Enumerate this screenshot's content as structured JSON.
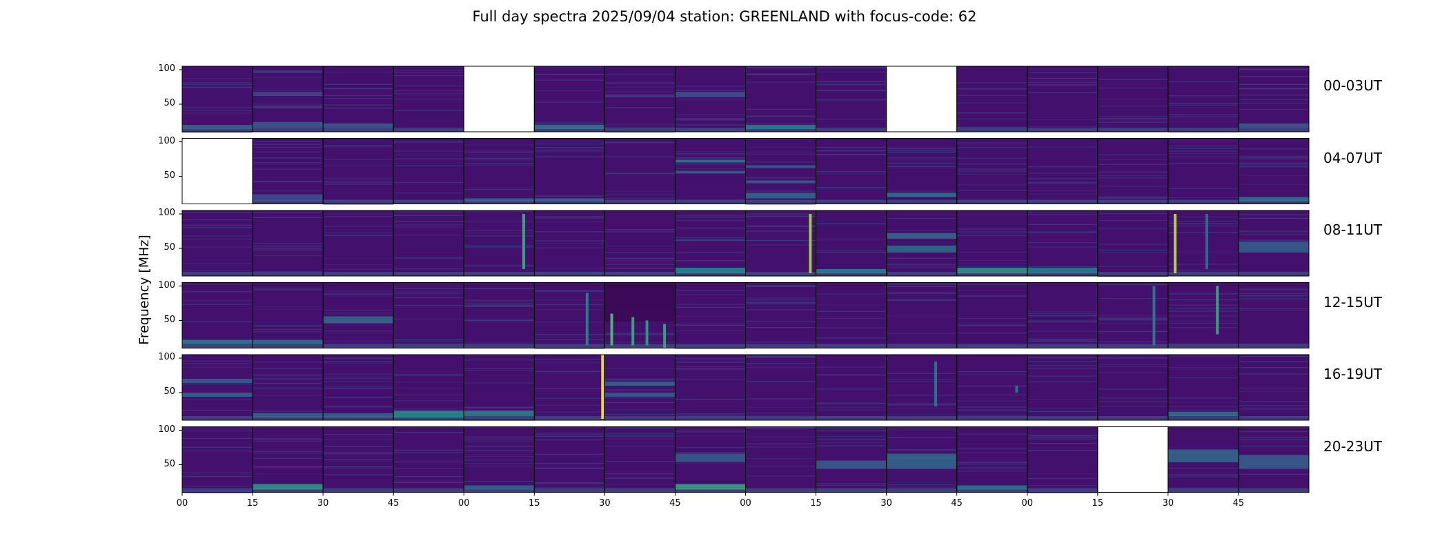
{
  "chart_data": {
    "type": "heatmap",
    "title": "Full day spectra 2025/09/04 station: GREENLAND with focus-code: 62",
    "ylabel": "Frequency [MHz]",
    "xlabel": "",
    "ylim": [
      10,
      105
    ],
    "yticks": [
      50,
      100
    ],
    "xtick_labels": [
      "00",
      "15",
      "30",
      "45",
      "00",
      "15",
      "30",
      "45",
      "00",
      "15",
      "30",
      "45",
      "00",
      "15",
      "30",
      "45"
    ],
    "colormap": "viridis",
    "colors": {
      "background": "#44106e",
      "empty_panel": "#ffffff",
      "frame": "#000000"
    },
    "rows": [
      {
        "label": "00-03UT",
        "missing_panels": [
          4,
          10
        ],
        "features": [
          {
            "panel": 0,
            "kind": "band",
            "f0": 14,
            "f1": 20,
            "level": 0.35
          },
          {
            "panel": 1,
            "kind": "band",
            "f0": 62,
            "f1": 68,
            "level": 0.22
          },
          {
            "panel": 1,
            "kind": "band",
            "f0": 44,
            "f1": 48,
            "level": 0.18
          },
          {
            "panel": 1,
            "kind": "band",
            "f0": 16,
            "f1": 24,
            "level": 0.3
          },
          {
            "panel": 2,
            "kind": "band",
            "f0": 16,
            "f1": 22,
            "level": 0.3
          },
          {
            "panel": 5,
            "kind": "band",
            "f0": 14,
            "f1": 20,
            "level": 0.4
          },
          {
            "panel": 6,
            "kind": "band",
            "f0": 60,
            "f1": 64,
            "level": 0.2
          },
          {
            "panel": 7,
            "kind": "band",
            "f0": 60,
            "f1": 68,
            "level": 0.25
          },
          {
            "panel": 8,
            "kind": "band",
            "f0": 14,
            "f1": 20,
            "level": 0.45
          },
          {
            "panel": 15,
            "kind": "band",
            "f0": 16,
            "f1": 22,
            "level": 0.3
          }
        ]
      },
      {
        "label": "04-07UT",
        "missing_panels": [
          0
        ],
        "features": [
          {
            "panel": 1,
            "kind": "band",
            "f0": 14,
            "f1": 24,
            "level": 0.25
          },
          {
            "panel": 4,
            "kind": "band",
            "f0": 14,
            "f1": 18,
            "level": 0.35
          },
          {
            "panel": 5,
            "kind": "band",
            "f0": 14,
            "f1": 18,
            "level": 0.35
          },
          {
            "panel": 7,
            "kind": "band",
            "f0": 70,
            "f1": 74,
            "level": 0.4
          },
          {
            "panel": 7,
            "kind": "band",
            "f0": 54,
            "f1": 58,
            "level": 0.3
          },
          {
            "panel": 8,
            "kind": "band",
            "f0": 62,
            "f1": 66,
            "level": 0.3
          },
          {
            "panel": 8,
            "kind": "band",
            "f0": 40,
            "f1": 44,
            "level": 0.3
          },
          {
            "panel": 8,
            "kind": "band",
            "f0": 18,
            "f1": 26,
            "level": 0.35
          },
          {
            "panel": 10,
            "kind": "band",
            "f0": 20,
            "f1": 26,
            "level": 0.4
          },
          {
            "panel": 15,
            "kind": "band",
            "f0": 14,
            "f1": 20,
            "level": 0.4
          }
        ]
      },
      {
        "label": "08-11UT",
        "missing_panels": [],
        "features": [
          {
            "panel": 4,
            "kind": "burst",
            "t": 0.85,
            "f0": 20,
            "f1": 100,
            "level": 0.6
          },
          {
            "panel": 7,
            "kind": "band",
            "f0": 14,
            "f1": 22,
            "level": 0.5
          },
          {
            "panel": 8,
            "kind": "burst",
            "t": 0.92,
            "f0": 14,
            "f1": 100,
            "level": 0.85
          },
          {
            "panel": 9,
            "kind": "band",
            "f0": 14,
            "f1": 20,
            "level": 0.45
          },
          {
            "panel": 10,
            "kind": "band",
            "f0": 64,
            "f1": 72,
            "level": 0.35
          },
          {
            "panel": 10,
            "kind": "band",
            "f0": 44,
            "f1": 54,
            "level": 0.35
          },
          {
            "panel": 11,
            "kind": "band",
            "f0": 14,
            "f1": 22,
            "level": 0.55
          },
          {
            "panel": 12,
            "kind": "band",
            "f0": 14,
            "f1": 22,
            "level": 0.45
          },
          {
            "panel": 14,
            "kind": "burst",
            "t": 0.1,
            "f0": 14,
            "f1": 100,
            "level": 0.9
          },
          {
            "panel": 14,
            "kind": "burst",
            "t": 0.55,
            "f0": 20,
            "f1": 100,
            "level": 0.35
          },
          {
            "panel": 15,
            "kind": "band",
            "f0": 44,
            "f1": 60,
            "level": 0.3
          }
        ]
      },
      {
        "label": "12-15UT",
        "missing_panels": [],
        "features": [
          {
            "panel": 0,
            "kind": "band",
            "f0": 16,
            "f1": 22,
            "level": 0.45
          },
          {
            "panel": 1,
            "kind": "band",
            "f0": 16,
            "f1": 22,
            "level": 0.4
          },
          {
            "panel": 2,
            "kind": "band",
            "f0": 46,
            "f1": 56,
            "level": 0.35
          },
          {
            "panel": 5,
            "kind": "burst",
            "t": 0.75,
            "f0": 14,
            "f1": 90,
            "level": 0.45
          },
          {
            "panel": 6,
            "kind": "dark",
            "f0": 48,
            "f1": 105,
            "level": 0.0
          },
          {
            "panel": 6,
            "kind": "burst",
            "t": 0.1,
            "f0": 14,
            "f1": 60,
            "level": 0.7
          },
          {
            "panel": 6,
            "kind": "burst",
            "t": 0.4,
            "f0": 14,
            "f1": 55,
            "level": 0.6
          },
          {
            "panel": 6,
            "kind": "burst",
            "t": 0.6,
            "f0": 14,
            "f1": 50,
            "level": 0.55
          },
          {
            "panel": 6,
            "kind": "burst",
            "t": 0.85,
            "f0": 10,
            "f1": 45,
            "level": 0.6
          },
          {
            "panel": 13,
            "kind": "burst",
            "t": 0.8,
            "f0": 14,
            "f1": 100,
            "level": 0.4
          },
          {
            "panel": 14,
            "kind": "burst",
            "t": 0.7,
            "f0": 30,
            "f1": 100,
            "level": 0.6
          }
        ]
      },
      {
        "label": "16-19UT",
        "missing_panels": [],
        "features": [
          {
            "panel": 0,
            "kind": "band",
            "f0": 64,
            "f1": 70,
            "level": 0.3
          },
          {
            "panel": 0,
            "kind": "band",
            "f0": 44,
            "f1": 50,
            "level": 0.35
          },
          {
            "panel": 1,
            "kind": "band",
            "f0": 14,
            "f1": 20,
            "level": 0.35
          },
          {
            "panel": 2,
            "kind": "band",
            "f0": 14,
            "f1": 20,
            "level": 0.35
          },
          {
            "panel": 3,
            "kind": "band",
            "f0": 14,
            "f1": 24,
            "level": 0.5
          },
          {
            "panel": 4,
            "kind": "band",
            "f0": 16,
            "f1": 24,
            "level": 0.45
          },
          {
            "panel": 5,
            "kind": "burst",
            "t": 0.97,
            "f0": 12,
            "f1": 105,
            "level": 1.0
          },
          {
            "panel": 6,
            "kind": "band",
            "f0": 60,
            "f1": 66,
            "level": 0.35
          },
          {
            "panel": 6,
            "kind": "band",
            "f0": 44,
            "f1": 50,
            "level": 0.3
          },
          {
            "panel": 10,
            "kind": "burst",
            "t": 0.7,
            "f0": 30,
            "f1": 95,
            "level": 0.4
          },
          {
            "panel": 11,
            "kind": "burst",
            "t": 0.85,
            "f0": 50,
            "f1": 60,
            "level": 0.4
          },
          {
            "panel": 14,
            "kind": "band",
            "f0": 16,
            "f1": 22,
            "level": 0.4
          }
        ]
      },
      {
        "label": "20-23UT",
        "missing_panels": [
          13
        ],
        "features": [
          {
            "panel": 1,
            "kind": "band",
            "f0": 14,
            "f1": 22,
            "level": 0.55
          },
          {
            "panel": 4,
            "kind": "band",
            "f0": 14,
            "f1": 20,
            "level": 0.35
          },
          {
            "panel": 7,
            "kind": "band",
            "f0": 14,
            "f1": 22,
            "level": 0.6
          },
          {
            "panel": 7,
            "kind": "band",
            "f0": 54,
            "f1": 66,
            "level": 0.3
          },
          {
            "panel": 9,
            "kind": "band",
            "f0": 44,
            "f1": 56,
            "level": 0.3
          },
          {
            "panel": 10,
            "kind": "band",
            "f0": 44,
            "f1": 66,
            "level": 0.35
          },
          {
            "panel": 11,
            "kind": "band",
            "f0": 14,
            "f1": 20,
            "level": 0.4
          },
          {
            "panel": 14,
            "kind": "band",
            "f0": 54,
            "f1": 72,
            "level": 0.35
          },
          {
            "panel": 15,
            "kind": "band",
            "f0": 44,
            "f1": 64,
            "level": 0.3
          }
        ]
      }
    ]
  }
}
